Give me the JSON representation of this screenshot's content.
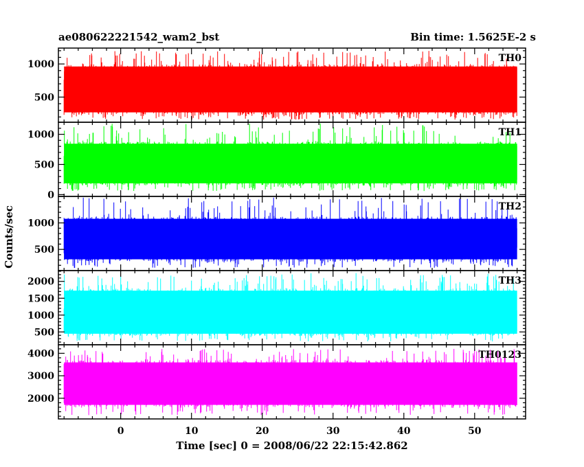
{
  "header": {
    "left": "ae080622221542_wam2_bst",
    "right": "Bin time: 1.5625E-2 s"
  },
  "chart_data": {
    "type": "line",
    "xlabel": "Time [sec] 0 = 2008/06/22 22:15:42.862",
    "ylabel": "Counts/sec",
    "xlim": [
      -8.8,
      57.2
    ],
    "x_ticks": [
      "0",
      "10",
      "20",
      "30",
      "40",
      "50"
    ],
    "x_tick_values": [
      0,
      10,
      20,
      30,
      40,
      50
    ],
    "data_x_range": [
      -8,
      56
    ],
    "bin_time": 0.015625,
    "grid": false,
    "series": [
      {
        "name": "TH0",
        "color": "#ff0000",
        "ylim": [
          120,
          1240
        ],
        "y_ticks": [
          "500",
          "1000"
        ],
        "y_tick_values": [
          500,
          1000
        ],
        "mean": 620,
        "typical_low": 230,
        "typical_high": 1000,
        "min": 160,
        "max": 1200
      },
      {
        "name": "TH1",
        "color": "#00ff00",
        "ylim": [
          -30,
          1200
        ],
        "y_ticks": [
          "0",
          "500",
          "1000"
        ],
        "y_tick_values": [
          0,
          500,
          1000
        ],
        "mean": 520,
        "typical_low": 150,
        "typical_high": 880,
        "min": 60,
        "max": 1180
      },
      {
        "name": "TH2",
        "color": "#0000ff",
        "ylim": [
          100,
          1500
        ],
        "y_ticks": [
          "500",
          "1000"
        ],
        "y_tick_values": [
          500,
          1000
        ],
        "mean": 700,
        "typical_low": 270,
        "typical_high": 1120,
        "min": 150,
        "max": 1480
      },
      {
        "name": "TH3",
        "color": "#00ffff",
        "ylim": [
          120,
          2320
        ],
        "y_ticks": [
          "500",
          "1000",
          "1500",
          "2000"
        ],
        "y_tick_values": [
          500,
          1000,
          1500,
          2000
        ],
        "mean": 1050,
        "typical_low": 380,
        "typical_high": 1800,
        "min": 220,
        "max": 2250
      },
      {
        "name": "TH0123",
        "color": "#ff00ff",
        "ylim": [
          1080,
          4380
        ],
        "y_ticks": [
          "2000",
          "3000",
          "4000"
        ],
        "y_tick_values": [
          2000,
          3000,
          4000
        ],
        "mean": 2650,
        "typical_low": 1600,
        "typical_high": 3700,
        "min": 1250,
        "max": 4200
      }
    ]
  }
}
